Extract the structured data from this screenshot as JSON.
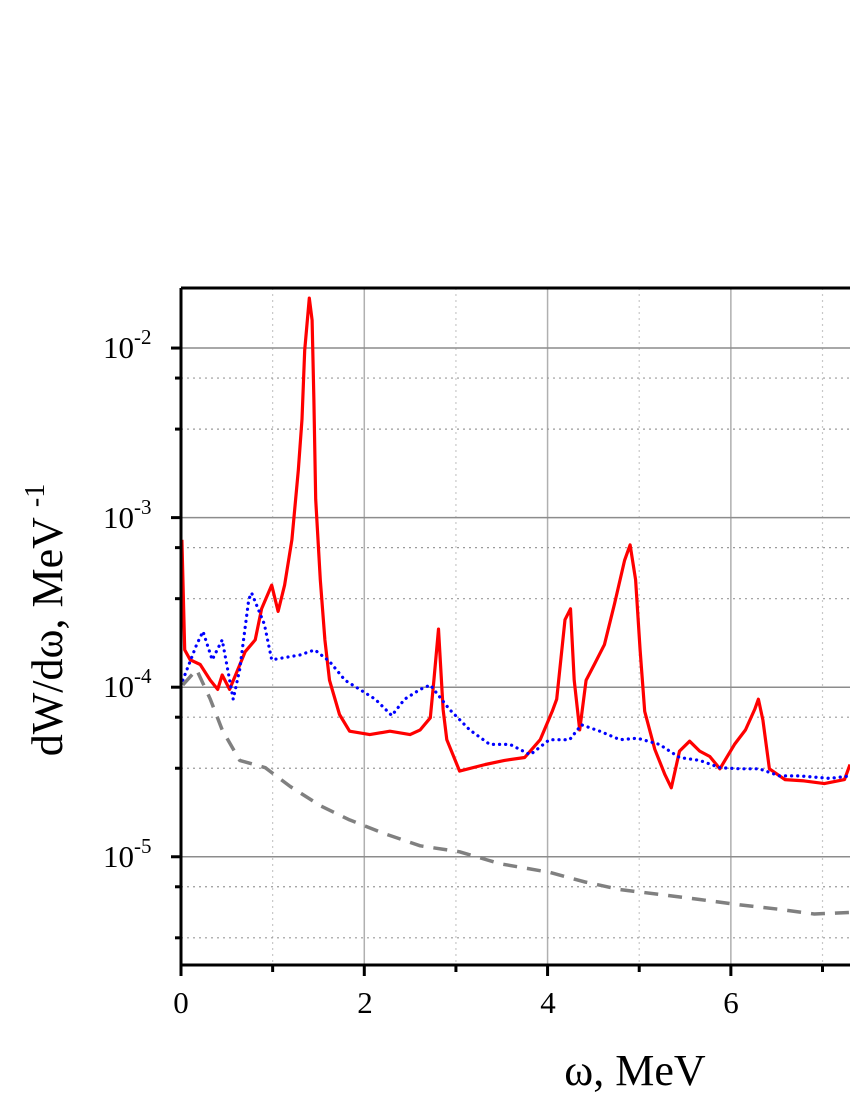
{
  "chart_data": {
    "type": "line",
    "title": "",
    "xlabel": "ω, MeV",
    "ylabel": {
      "text": "dW/dω, MeV",
      "exponent": "-1"
    },
    "xlim": [
      0,
      7.3
    ],
    "ylim": [
      2.3e-06,
      0.0226
    ],
    "yscale": "log",
    "grid": true,
    "x_ticks": [
      "0",
      "2",
      "4",
      "6"
    ],
    "y_ticks": [
      {
        "base": "10",
        "exp": "-2"
      },
      {
        "base": "10",
        "exp": "-3"
      },
      {
        "base": "10",
        "exp": "-4"
      },
      {
        "base": "10",
        "exp": "-5"
      }
    ],
    "series": [
      {
        "color": "#ff0000",
        "style": "solid",
        "x": [
          0.01,
          0.04,
          0.1,
          0.21,
          0.32,
          0.4,
          0.45,
          0.53,
          0.62,
          0.7,
          0.81,
          0.88,
          0.99,
          1.06,
          1.13,
          1.21,
          1.28,
          1.32,
          1.35,
          1.4,
          1.43,
          1.45,
          1.47,
          1.52,
          1.57,
          1.62,
          1.73,
          1.84,
          2.06,
          2.28,
          2.5,
          2.61,
          2.72,
          2.76,
          2.81,
          2.86,
          2.9,
          3.04,
          3.32,
          3.53,
          3.75,
          3.92,
          4.05,
          4.1,
          4.19,
          4.25,
          4.29,
          4.35,
          4.42,
          4.51,
          4.62,
          4.73,
          4.84,
          4.9,
          4.96,
          5.01,
          5.06,
          5.17,
          5.28,
          5.35,
          5.44,
          5.55,
          5.66,
          5.77,
          5.88,
          6.04,
          6.16,
          6.26,
          6.3,
          6.35,
          6.42,
          6.59,
          6.8,
          7.02,
          7.24,
          7.3
        ],
        "y": [
          0.00074,
          0.000166,
          0.000145,
          0.000136,
          0.00011,
          9.7e-05,
          0.000118,
          9.7e-05,
          0.000127,
          0.000162,
          0.00019,
          0.00029,
          0.0004,
          0.00028,
          0.0004,
          0.00074,
          0.0019,
          0.0038,
          0.0097,
          0.0197,
          0.0146,
          0.0049,
          0.00128,
          0.00043,
          0.00019,
          0.00011,
          6.9e-05,
          5.5e-05,
          5.25e-05,
          5.5e-05,
          5.25e-05,
          5.6e-05,
          6.6e-05,
          0.00011,
          0.00022,
          7.4e-05,
          4.9e-05,
          3.2e-05,
          3.5e-05,
          3.7e-05,
          3.85e-05,
          4.9e-05,
          7.2e-05,
          8.5e-05,
          0.00025,
          0.00029,
          0.00011,
          5.6e-05,
          0.00011,
          0.000136,
          0.000178,
          0.00031,
          0.00056,
          0.00069,
          0.00043,
          0.000166,
          7.2e-05,
          4.3e-05,
          3.05e-05,
          2.55e-05,
          4.2e-05,
          4.8e-05,
          4.2e-05,
          3.9e-05,
          3.3e-05,
          4.6e-05,
          5.6e-05,
          7.4e-05,
          8.5e-05,
          6.4e-05,
          3.3e-05,
          2.85e-05,
          2.8e-05,
          2.7e-05,
          2.85e-05,
          3.5e-05
        ]
      },
      {
        "color": "#0000ff",
        "style": "dotted",
        "x": [
          0.02,
          0.17,
          0.24,
          0.34,
          0.45,
          0.57,
          0.64,
          0.74,
          0.77,
          0.91,
          0.99,
          1.3,
          1.46,
          1.62,
          1.79,
          2.12,
          2.3,
          2.44,
          2.61,
          2.72,
          2.93,
          3.15,
          3.37,
          3.59,
          3.81,
          4.02,
          4.24,
          4.37,
          4.57,
          4.79,
          4.98,
          5.22,
          5.44,
          5.66,
          5.88,
          6.1,
          6.31,
          6.53,
          6.75,
          7.08,
          7.3
        ],
        "y": [
          0.00011,
          0.000178,
          0.000213,
          0.000145,
          0.00019,
          8.5e-05,
          0.000127,
          0.00033,
          0.00036,
          0.000235,
          0.000145,
          0.000155,
          0.000166,
          0.000142,
          0.00011,
          8.5e-05,
          6.8e-05,
          8.5e-05,
          9.7e-05,
          0.000103,
          7.4e-05,
          5.6e-05,
          4.6e-05,
          4.6e-05,
          4e-05,
          4.9e-05,
          4.9e-05,
          6e-05,
          5.5e-05,
          4.9e-05,
          5e-05,
          4.6e-05,
          3.85e-05,
          3.7e-05,
          3.35e-05,
          3.3e-05,
          3.3e-05,
          3e-05,
          3e-05,
          2.9e-05,
          3e-05
        ]
      },
      {
        "color": "#808080",
        "style": "dashed",
        "x": [
          0.02,
          0.17,
          0.32,
          0.45,
          0.64,
          0.92,
          1.19,
          1.52,
          1.84,
          2.22,
          2.61,
          3.04,
          3.48,
          4.02,
          4.41,
          4.79,
          5.22,
          5.66,
          6.1,
          6.53,
          6.91,
          7.3
        ],
        "y": [
          0.000103,
          0.000127,
          8.5e-05,
          5.6e-05,
          3.7e-05,
          3.35e-05,
          2.6e-05,
          2e-05,
          1.65e-05,
          1.37e-05,
          1.16e-05,
          1.07e-05,
          9.1e-06,
          8.1e-06,
          7.1e-06,
          6.4e-06,
          6e-06,
          5.6e-06,
          5.2e-06,
          4.9e-06,
          4.6e-06,
          4.7e-06
        ]
      }
    ]
  }
}
